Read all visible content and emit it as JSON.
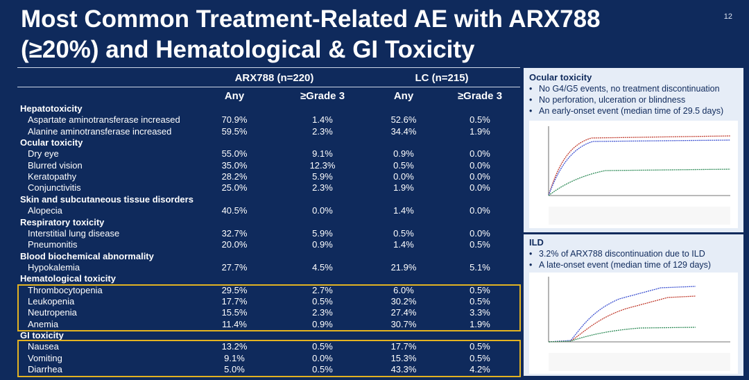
{
  "title_line1": "Most Common Treatment-Related AE with ARX788",
  "title_line2": "(≥20%) and Hematological & GI Toxicity",
  "page_number": "12",
  "table": {
    "group1": "ARX788 (n=220)",
    "group2": "LC (n=215)",
    "col_any": "Any",
    "col_g3": "≥Grade 3",
    "rows": [
      {
        "type": "cat",
        "label": "Hepatotoxicity"
      },
      {
        "type": "item",
        "label": "Aspartate aminotransferase increased",
        "v": [
          "70.9%",
          "1.4%",
          "52.6%",
          "0.5%"
        ]
      },
      {
        "type": "item",
        "label": "Alanine aminotransferase increased",
        "v": [
          "59.5%",
          "2.3%",
          "34.4%",
          "1.9%"
        ]
      },
      {
        "type": "cat",
        "label": "Ocular toxicity"
      },
      {
        "type": "item",
        "label": "Dry eye",
        "v": [
          "55.0%",
          "9.1%",
          "0.9%",
          "0.0%"
        ]
      },
      {
        "type": "item",
        "label": "Blurred vision",
        "v": [
          "35.0%",
          "12.3%",
          "0.5%",
          "0.0%"
        ]
      },
      {
        "type": "item",
        "label": "Keratopathy",
        "v": [
          "28.2%",
          "5.9%",
          "0.0%",
          "0.0%"
        ]
      },
      {
        "type": "item",
        "label": "Conjunctivitis",
        "v": [
          "25.0%",
          "2.3%",
          "1.9%",
          "0.0%"
        ]
      },
      {
        "type": "cat",
        "label": "Skin and subcutaneous tissue disorders"
      },
      {
        "type": "item",
        "label": "Alopecia",
        "v": [
          "40.5%",
          "0.0%",
          "1.4%",
          "0.0%"
        ]
      },
      {
        "type": "cat",
        "label": "Respiratory toxicity"
      },
      {
        "type": "item",
        "label": "Interstitial lung disease",
        "v": [
          "32.7%",
          "5.9%",
          "0.5%",
          "0.0%"
        ]
      },
      {
        "type": "item",
        "label": "Pneumonitis",
        "v": [
          "20.0%",
          "0.9%",
          "1.4%",
          "0.5%"
        ]
      },
      {
        "type": "cat",
        "label": "Blood biochemical abnormality"
      },
      {
        "type": "item",
        "label": "Hypokalemia",
        "v": [
          "27.7%",
          "4.5%",
          "21.9%",
          "5.1%"
        ]
      },
      {
        "type": "cat",
        "label": "Hematological toxicity"
      },
      {
        "type": "item",
        "label": "Thrombocytopenia",
        "v": [
          "29.5%",
          "2.7%",
          "6.0%",
          "0.5%"
        ]
      },
      {
        "type": "item",
        "label": "Leukopenia",
        "v": [
          "17.7%",
          "0.5%",
          "30.2%",
          "0.5%"
        ]
      },
      {
        "type": "item",
        "label": "Neutropenia",
        "v": [
          "15.5%",
          "2.3%",
          "27.4%",
          "3.3%"
        ]
      },
      {
        "type": "item",
        "label": "Anemia",
        "v": [
          "11.4%",
          "0.9%",
          "30.7%",
          "1.9%"
        ]
      },
      {
        "type": "cat",
        "label": "GI toxicity"
      },
      {
        "type": "item",
        "label": "Nausea",
        "v": [
          "13.2%",
          "0.5%",
          "17.7%",
          "0.5%"
        ]
      },
      {
        "type": "item",
        "label": "Vomiting",
        "v": [
          "9.1%",
          "0.0%",
          "15.3%",
          "0.5%"
        ]
      },
      {
        "type": "item",
        "label": "Diarrhea",
        "v": [
          "5.0%",
          "0.5%",
          "43.3%",
          "4.2%"
        ]
      }
    ]
  },
  "highlight_color": "#e3b322",
  "ocular_panel": {
    "title": "Ocular toxicity",
    "bullets": [
      "No G4/G5 events, no treatment discontinuation",
      "No perforation, ulceration or blindness",
      "An early-onset event (median time of 29.5 days)"
    ]
  },
  "ild_panel": {
    "title": "ILD",
    "bullets": [
      "3.2% of ARX788 discontinuation due to ILD",
      "A late-onset event (median time of 129 days)"
    ]
  }
}
